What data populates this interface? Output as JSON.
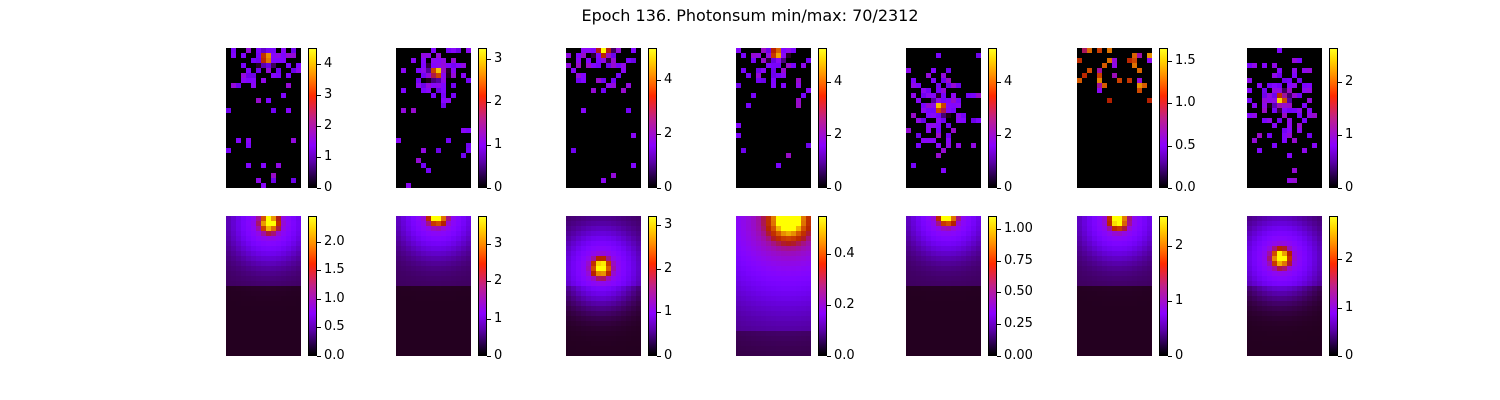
{
  "title": "Epoch 136. Photonsum min/max: 70/2312",
  "colormap": [
    "#000000",
    "#5a00a8",
    "#8a00ff",
    "#ff2a00",
    "#ff8a00",
    "#ffd700",
    "#ffff20"
  ],
  "chart_data": [
    {
      "type": "heatmap",
      "row": 0,
      "col": 0,
      "style": "sparse",
      "spot": [
        0.55,
        0.07
      ],
      "vmax": 4.5,
      "ticks": [
        "0",
        "1",
        "2",
        "3",
        "4"
      ]
    },
    {
      "type": "heatmap",
      "row": 0,
      "col": 1,
      "style": "sparse",
      "spot": [
        0.55,
        0.17
      ],
      "vmax": 3.25,
      "ticks": [
        "0",
        "1",
        "2",
        "3"
      ]
    },
    {
      "type": "heatmap",
      "row": 0,
      "col": 2,
      "style": "sparse",
      "spot": [
        0.5,
        0.02
      ],
      "vmax": 5.2,
      "ticks": [
        "0",
        "2",
        "4"
      ]
    },
    {
      "type": "heatmap",
      "row": 0,
      "col": 3,
      "style": "sparse",
      "spot": [
        0.55,
        0.04
      ],
      "vmax": 5.3,
      "ticks": [
        "0",
        "2",
        "4"
      ]
    },
    {
      "type": "heatmap",
      "row": 0,
      "col": 4,
      "style": "sparse",
      "spot": [
        0.45,
        0.42
      ],
      "vmax": 5.3,
      "ticks": [
        "0",
        "2",
        "4"
      ]
    },
    {
      "type": "heatmap",
      "row": 0,
      "col": 5,
      "style": "sparse-top",
      "spot": [
        0.5,
        0.01
      ],
      "vmax": 1.65,
      "ticks": [
        "0.0",
        "0.5",
        "1.0",
        "1.5"
      ]
    },
    {
      "type": "heatmap",
      "row": 0,
      "col": 6,
      "style": "sparse",
      "spot": [
        0.45,
        0.37
      ],
      "vmax": 2.65,
      "ticks": [
        "0",
        "1",
        "2"
      ]
    },
    {
      "type": "heatmap",
      "row": 1,
      "col": 0,
      "style": "smooth",
      "spot": [
        0.58,
        0.05
      ],
      "vmax": 2.45,
      "ticks": [
        "0.0",
        "0.5",
        "1.0",
        "1.5",
        "2.0"
      ]
    },
    {
      "type": "heatmap",
      "row": 1,
      "col": 1,
      "style": "smooth",
      "spot": [
        0.55,
        0.0
      ],
      "vmax": 3.75,
      "ticks": [
        "0",
        "1",
        "2",
        "3"
      ]
    },
    {
      "type": "heatmap",
      "row": 1,
      "col": 2,
      "style": "smooth",
      "spot": [
        0.47,
        0.37
      ],
      "vmax": 3.2,
      "ticks": [
        "0",
        "1",
        "2",
        "3"
      ]
    },
    {
      "type": "heatmap",
      "row": 1,
      "col": 3,
      "style": "wide",
      "spot": [
        0.7,
        0.03
      ],
      "vmax": 0.55,
      "ticks": [
        "0.0",
        "0.2",
        "0.4"
      ]
    },
    {
      "type": "heatmap",
      "row": 1,
      "col": 4,
      "style": "smooth",
      "spot": [
        0.55,
        0.0
      ],
      "vmax": 1.1,
      "ticks": [
        "0.00",
        "0.25",
        "0.50",
        "0.75",
        "1.00"
      ]
    },
    {
      "type": "heatmap",
      "row": 1,
      "col": 5,
      "style": "smooth",
      "spot": [
        0.55,
        0.03
      ],
      "vmax": 2.55,
      "ticks": [
        "0",
        "1",
        "2"
      ]
    },
    {
      "type": "heatmap",
      "row": 1,
      "col": 6,
      "style": "smooth",
      "spot": [
        0.45,
        0.3
      ],
      "vmax": 2.9,
      "ticks": [
        "0",
        "1",
        "2"
      ]
    }
  ]
}
